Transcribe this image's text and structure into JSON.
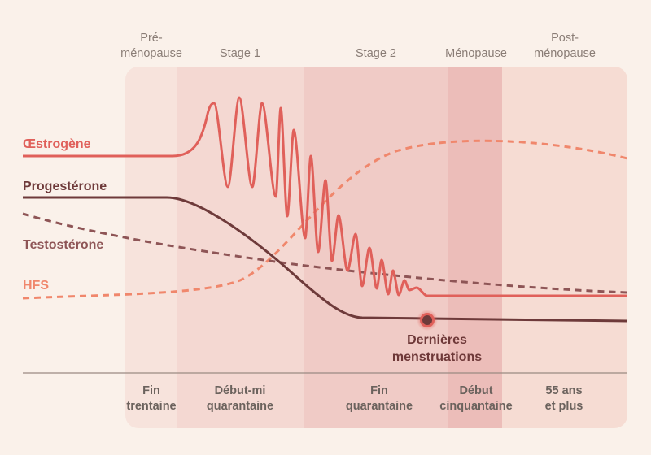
{
  "stages": [
    {
      "label": "Pré-\nménopause",
      "color": "#f7e3dc"
    },
    {
      "label": "Stage 1",
      "color": "#f4d8d2"
    },
    {
      "label": "Stage 2",
      "color": "#f0cbc6"
    },
    {
      "label": "Ménopause",
      "color": "#ecbdb9"
    },
    {
      "label": "Post-\nménopause",
      "color": "#f6dcd3"
    }
  ],
  "ages": [
    "Fin\ntrentaine",
    "Début-mi\nquarantaine",
    "Fin\nquarantaine",
    "Début\ncinquantaine",
    "55 ans\net plus"
  ],
  "hormones": [
    {
      "name": "Œstrogène",
      "color": "#e0605a",
      "style": "solid"
    },
    {
      "name": "Progestérone",
      "color": "#6e3a3a",
      "style": "solid"
    },
    {
      "name": "Testostérone",
      "color": "#8e5556",
      "style": "dashed"
    },
    {
      "name": "HFS",
      "color": "#f0876c",
      "style": "dashed"
    }
  ],
  "annotation": "Dernières\nmenstruations"
}
